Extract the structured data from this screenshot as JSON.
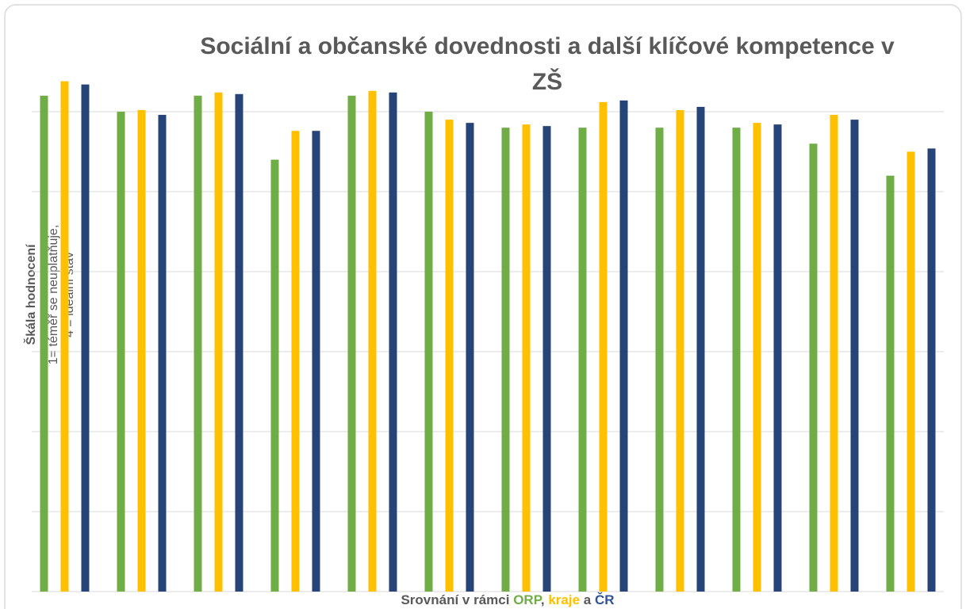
{
  "chart_data": {
    "type": "bar",
    "title_lines": [
      "Sociální a občanské dovednosti a další klíčové kompetence v",
      "ZŠ"
    ],
    "y_label_lines": [
      "Škála hodnocení",
      "1= téměř se neuplatňuje,",
      "4 = ideální stav"
    ],
    "x_label_parts": [
      "Srovnání v rámci",
      ",",
      "a"
    ],
    "categories": [
      null,
      null,
      null,
      null,
      null,
      null,
      null,
      null,
      null,
      null,
      null,
      null
    ],
    "series": [
      {
        "name": "ORP",
        "color": "#70ad47",
        "values": [
          3.1,
          3.0,
          3.1,
          2.7,
          3.1,
          3.0,
          2.9,
          2.9,
          2.9,
          2.9,
          2.8,
          2.6
        ]
      },
      {
        "name": "kraje",
        "color": "#ffc000",
        "values": [
          3.19,
          3.01,
          3.12,
          2.88,
          3.13,
          2.95,
          2.92,
          3.06,
          3.01,
          2.93,
          2.98,
          2.75
        ]
      },
      {
        "name": "ČR",
        "color": "#264478",
        "values": [
          3.17,
          2.98,
          3.11,
          2.88,
          3.12,
          2.93,
          2.91,
          3.07,
          3.03,
          2.92,
          2.95,
          2.77
        ]
      }
    ],
    "ylim": [
      0,
      3.5
    ],
    "yticks": [
      0,
      0.5,
      1,
      1.5,
      2,
      2.5,
      3
    ],
    "grid": true
  }
}
